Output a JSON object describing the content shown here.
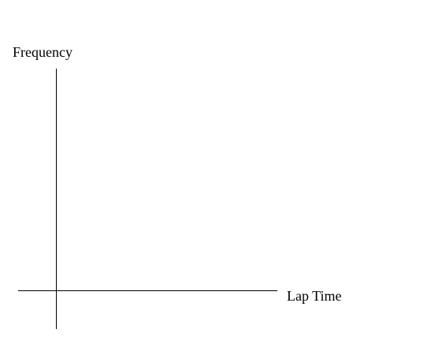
{
  "chart_data": {
    "type": "bar",
    "categories": [],
    "values": [],
    "title": "",
    "xlabel": "Lap Time",
    "ylabel": "Frequency",
    "grid": false
  },
  "colors": {
    "background": "#ffffff",
    "axis": "#000000",
    "text": "#000000"
  }
}
